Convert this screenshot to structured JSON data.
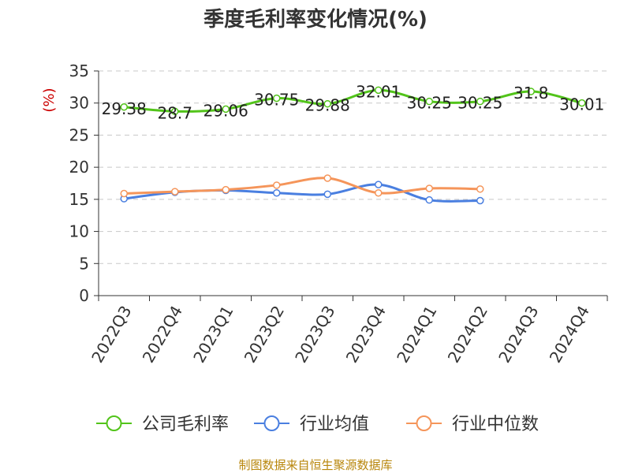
{
  "chart_data": {
    "type": "line",
    "title": "季度毛利率变化情况(%)",
    "ylabel": "(%)",
    "xlabel": "",
    "categories": [
      "2022Q3",
      "2022Q4",
      "2023Q1",
      "2023Q2",
      "2023Q3",
      "2023Q4",
      "2024Q1",
      "2024Q2",
      "2024Q3",
      "2024Q4"
    ],
    "ylim": [
      0,
      35
    ],
    "yticks": [
      0,
      5,
      10,
      15,
      20,
      25,
      30,
      35
    ],
    "grid": true,
    "legend_position": "bottom",
    "series": [
      {
        "name": "公司毛利率",
        "color": "#52c41a",
        "values": [
          29.38,
          28.7,
          29.06,
          30.75,
          29.88,
          32.01,
          30.25,
          30.25,
          31.8,
          30.01
        ],
        "labels": [
          "29.38",
          "28.7",
          "29.06",
          "30.75",
          "29.88",
          "32.01",
          "30.25",
          "30.25",
          "31.8",
          "30.01"
        ]
      },
      {
        "name": "行业均值",
        "color": "#4a7fe0",
        "values": [
          15.1,
          16.1,
          16.4,
          16.0,
          15.8,
          17.3,
          14.9,
          14.8,
          null,
          null
        ]
      },
      {
        "name": "行业中位数",
        "color": "#f5955a",
        "values": [
          15.9,
          16.2,
          16.5,
          17.2,
          18.3,
          16.0,
          16.7,
          16.6,
          null,
          null
        ]
      }
    ],
    "source": "制图数据来自恒生聚源数据库"
  }
}
